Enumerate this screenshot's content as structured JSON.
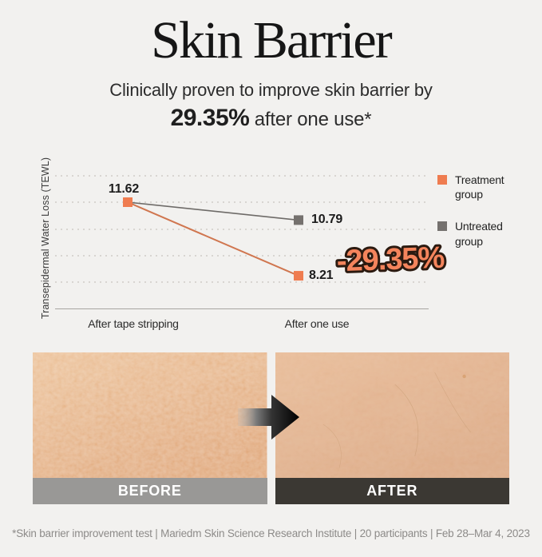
{
  "header": {
    "title": "Skin Barrier",
    "subtitle_line1": "Clinically proven to improve skin barrier by",
    "subtitle_strong": "29.35%",
    "subtitle_rest": " after one use*"
  },
  "chart_data": {
    "type": "line",
    "title": "",
    "ylabel": "Transepidermal Water Loss (TEWL)",
    "xlabel": "",
    "categories": [
      "After tape stripping",
      "After one use"
    ],
    "series": [
      {
        "name": "Treatment group",
        "color": "#ef7c50",
        "line_color": "#d0764f",
        "values": [
          11.62,
          8.21
        ]
      },
      {
        "name": "Untreated group",
        "color": "#75716e",
        "line_color": "#6e6b68",
        "values": [
          11.62,
          10.79
        ]
      }
    ],
    "annotation": "-29.35%",
    "annotation_fill": "#f4845c",
    "annotation_outline": "#2b1a10",
    "grid": "dotted-horizontal",
    "gridline_count": 5,
    "legend_position": "right",
    "marker": "square"
  },
  "comparison": {
    "before_label": "BEFORE",
    "after_label": "AFTER",
    "arrow_icon": "right-arrow"
  },
  "footnote": "*Skin barrier improvement test | Mariedm Skin Science Research Institute | 20 participants | Feb 28–Mar 4, 2023",
  "colors": {
    "background": "#f2f1ef",
    "accent_orange": "#ef7c50",
    "neutral_gray": "#75716e",
    "before_bar": "#999896",
    "after_bar": "#3b3833",
    "skin_before": "#e6af83",
    "skin_after": "#e3b18e",
    "footnote_text": "#8d8b89"
  }
}
